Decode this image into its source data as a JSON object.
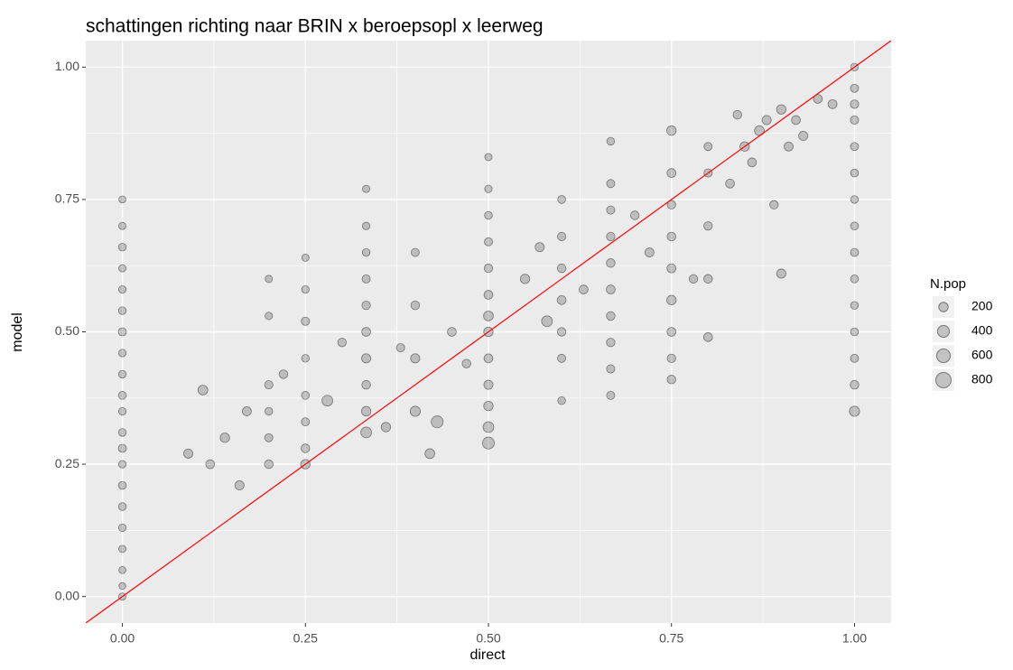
{
  "chart_data": {
    "type": "scatter",
    "title": "schattingen richting naar BRIN x beroepsopl x leerweg",
    "x_label": "direct",
    "y_label": "model",
    "xlim": [
      -0.05,
      1.05
    ],
    "ylim": [
      -0.05,
      1.05
    ],
    "xticks": [
      {
        "value": 0,
        "label": "0.00"
      },
      {
        "value": 0.25,
        "label": "0.25"
      },
      {
        "value": 0.5,
        "label": "0.50"
      },
      {
        "value": 0.75,
        "label": "0.75"
      },
      {
        "value": 1,
        "label": "1.00"
      }
    ],
    "yticks": [
      {
        "value": 0,
        "label": "0.00"
      },
      {
        "value": 0.25,
        "label": "0.25"
      },
      {
        "value": 0.5,
        "label": "0.50"
      },
      {
        "value": 0.75,
        "label": "0.75"
      },
      {
        "value": 1,
        "label": "1.00"
      }
    ],
    "grid": true,
    "color": "#333333",
    "reference_line": {
      "slope": 1,
      "intercept": 0,
      "color": "#ff0000"
    },
    "size_legend": {
      "title": "N.pop",
      "values": [
        200,
        400,
        600,
        800
      ]
    },
    "x": [
      0,
      0,
      0,
      0,
      0,
      0,
      0,
      0,
      0,
      0,
      0,
      0,
      0,
      0,
      0,
      0,
      0,
      0,
      0,
      0,
      0,
      0.2,
      0.2,
      0.2,
      0.2,
      0.2,
      0.2,
      0.25,
      0.25,
      0.25,
      0.25,
      0.25,
      0.25,
      0.25,
      0.25,
      0.333,
      0.333,
      0.333,
      0.333,
      0.333,
      0.333,
      0.333,
      0.333,
      0.333,
      0.333,
      0.4,
      0.4,
      0.4,
      0.4,
      0.5,
      0.5,
      0.5,
      0.5,
      0.5,
      0.5,
      0.5,
      0.5,
      0.5,
      0.5,
      0.5,
      0.5,
      0.5,
      0.6,
      0.6,
      0.6,
      0.6,
      0.6,
      0.6,
      0.6,
      0.667,
      0.667,
      0.667,
      0.667,
      0.667,
      0.667,
      0.667,
      0.667,
      0.667,
      0.667,
      0.75,
      0.75,
      0.75,
      0.75,
      0.75,
      0.75,
      0.75,
      0.75,
      0.75,
      0.8,
      0.8,
      0.8,
      0.8,
      0.8,
      1,
      1,
      1,
      1,
      1,
      1,
      1,
      1,
      1,
      1,
      1,
      1,
      1,
      1,
      1,
      0.09,
      0.11,
      0.12,
      0.14,
      0.16,
      0.17,
      0.22,
      0.28,
      0.3,
      0.36,
      0.38,
      0.42,
      0.43,
      0.45,
      0.47,
      0.55,
      0.57,
      0.58,
      0.63,
      0.7,
      0.72,
      0.78,
      0.83,
      0.85,
      0.87,
      0.88,
      0.9,
      0.92,
      0.93,
      0.95,
      0.9,
      0.89,
      0.86,
      0.91,
      0.84,
      0.97
    ],
    "values": [
      0.0,
      0.02,
      0.05,
      0.09,
      0.13,
      0.17,
      0.21,
      0.25,
      0.28,
      0.31,
      0.35,
      0.38,
      0.42,
      0.46,
      0.5,
      0.54,
      0.58,
      0.62,
      0.66,
      0.7,
      0.75,
      0.25,
      0.3,
      0.35,
      0.4,
      0.53,
      0.6,
      0.25,
      0.28,
      0.33,
      0.38,
      0.45,
      0.52,
      0.58,
      0.64,
      0.31,
      0.35,
      0.4,
      0.45,
      0.5,
      0.55,
      0.6,
      0.65,
      0.7,
      0.77,
      0.35,
      0.45,
      0.55,
      0.65,
      0.29,
      0.32,
      0.36,
      0.4,
      0.45,
      0.5,
      0.53,
      0.57,
      0.62,
      0.67,
      0.72,
      0.77,
      0.83,
      0.37,
      0.45,
      0.5,
      0.56,
      0.62,
      0.68,
      0.75,
      0.38,
      0.43,
      0.48,
      0.53,
      0.58,
      0.63,
      0.68,
      0.73,
      0.78,
      0.86,
      0.41,
      0.45,
      0.5,
      0.56,
      0.62,
      0.68,
      0.74,
      0.8,
      0.88,
      0.49,
      0.6,
      0.7,
      0.8,
      0.85,
      0.35,
      0.4,
      0.45,
      0.5,
      0.55,
      0.6,
      0.65,
      0.7,
      0.75,
      0.8,
      0.85,
      0.9,
      0.93,
      0.96,
      1.0,
      0.27,
      0.39,
      0.25,
      0.3,
      0.21,
      0.35,
      0.42,
      0.37,
      0.48,
      0.32,
      0.47,
      0.27,
      0.33,
      0.5,
      0.44,
      0.6,
      0.66,
      0.52,
      0.58,
      0.72,
      0.65,
      0.6,
      0.78,
      0.85,
      0.88,
      0.9,
      0.92,
      0.9,
      0.87,
      0.94,
      0.61,
      0.74,
      0.82,
      0.85,
      0.91,
      0.93
    ],
    "sizes": [
      80,
      60,
      70,
      80,
      90,
      100,
      110,
      90,
      120,
      100,
      90,
      110,
      100,
      90,
      120,
      100,
      90,
      80,
      100,
      80,
      70,
      150,
      120,
      100,
      130,
      90,
      80,
      200,
      150,
      120,
      110,
      100,
      130,
      90,
      80,
      300,
      200,
      150,
      180,
      160,
      140,
      120,
      100,
      90,
      80,
      250,
      180,
      150,
      120,
      400,
      300,
      200,
      180,
      160,
      200,
      220,
      160,
      140,
      120,
      100,
      90,
      80,
      100,
      120,
      140,
      160,
      150,
      130,
      110,
      120,
      130,
      140,
      150,
      160,
      150,
      140,
      130,
      120,
      100,
      150,
      140,
      160,
      200,
      170,
      150,
      140,
      160,
      200,
      160,
      150,
      140,
      130,
      120,
      250,
      150,
      120,
      110,
      100,
      110,
      120,
      110,
      100,
      110,
      120,
      130,
      140,
      120,
      100,
      180,
      220,
      160,
      200,
      180,
      170,
      150,
      300,
      140,
      200,
      130,
      220,
      400,
      160,
      150,
      200,
      180,
      300,
      160,
      150,
      170,
      140,
      160,
      200,
      220,
      180,
      200,
      160,
      180,
      160,
      180,
      140,
      160,
      170,
      150,
      170
    ]
  }
}
